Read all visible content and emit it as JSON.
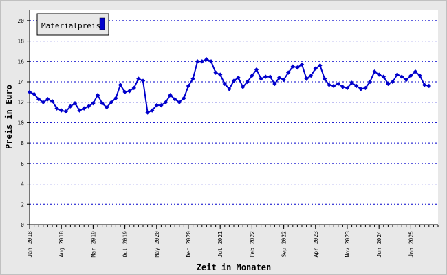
{
  "chart_data": {
    "type": "line",
    "xlabel": "Zeit in Monaten",
    "ylabel": "Preis in Euro",
    "ylim": [
      0,
      21
    ],
    "yticks": [
      0,
      2,
      4,
      6,
      8,
      10,
      12,
      14,
      16,
      18,
      20
    ],
    "grid": true,
    "legend_position": "top-left",
    "x_tick_labels": [
      "Jan 2018",
      "Aug 2018",
      "Mar 2019",
      "Oct 2019",
      "May 2020",
      "Dec 2020",
      "Jul 2021",
      "Feb 2022",
      "Sep 2022",
      "Apr 2023",
      "Nov 2023",
      "Jun 2024",
      "Jan 2025"
    ],
    "x_tick_months": [
      0,
      7,
      14,
      21,
      28,
      35,
      42,
      49,
      56,
      63,
      70,
      77,
      84
    ],
    "x_months_total": 90,
    "colors": {
      "series": "#0000cc",
      "background": "#e8e8e8",
      "plot": "#ffffff",
      "grid": "#0000cc",
      "axis": "#000000"
    },
    "series": [
      {
        "name": "Materialpreis",
        "values": [
          13.0,
          12.8,
          12.3,
          12.0,
          12.3,
          12.1,
          11.4,
          11.2,
          11.1,
          11.6,
          11.9,
          11.2,
          11.4,
          11.6,
          11.9,
          12.7,
          11.9,
          11.5,
          12.0,
          12.4,
          13.7,
          13.0,
          13.1,
          13.4,
          14.3,
          14.1,
          11.0,
          11.2,
          11.7,
          11.7,
          12.0,
          12.7,
          12.3,
          12.0,
          12.4,
          13.6,
          14.3,
          16.0,
          16.0,
          16.2,
          16.0,
          14.9,
          14.7,
          13.8,
          13.3,
          14.1,
          14.4,
          13.5,
          14.0,
          14.6,
          15.2,
          14.3,
          14.5,
          14.5,
          13.8,
          14.4,
          14.2,
          14.9,
          15.5,
          15.4,
          15.7,
          14.3,
          14.6,
          15.3,
          15.6,
          14.3,
          13.7,
          13.6,
          13.8,
          13.5,
          13.4,
          13.9,
          13.6,
          13.3,
          13.4,
          14.0,
          15.0,
          14.7,
          14.5,
          13.8,
          14.0,
          14.7,
          14.5,
          14.2,
          14.6,
          15.0,
          14.6,
          13.7,
          13.6
        ]
      }
    ]
  }
}
